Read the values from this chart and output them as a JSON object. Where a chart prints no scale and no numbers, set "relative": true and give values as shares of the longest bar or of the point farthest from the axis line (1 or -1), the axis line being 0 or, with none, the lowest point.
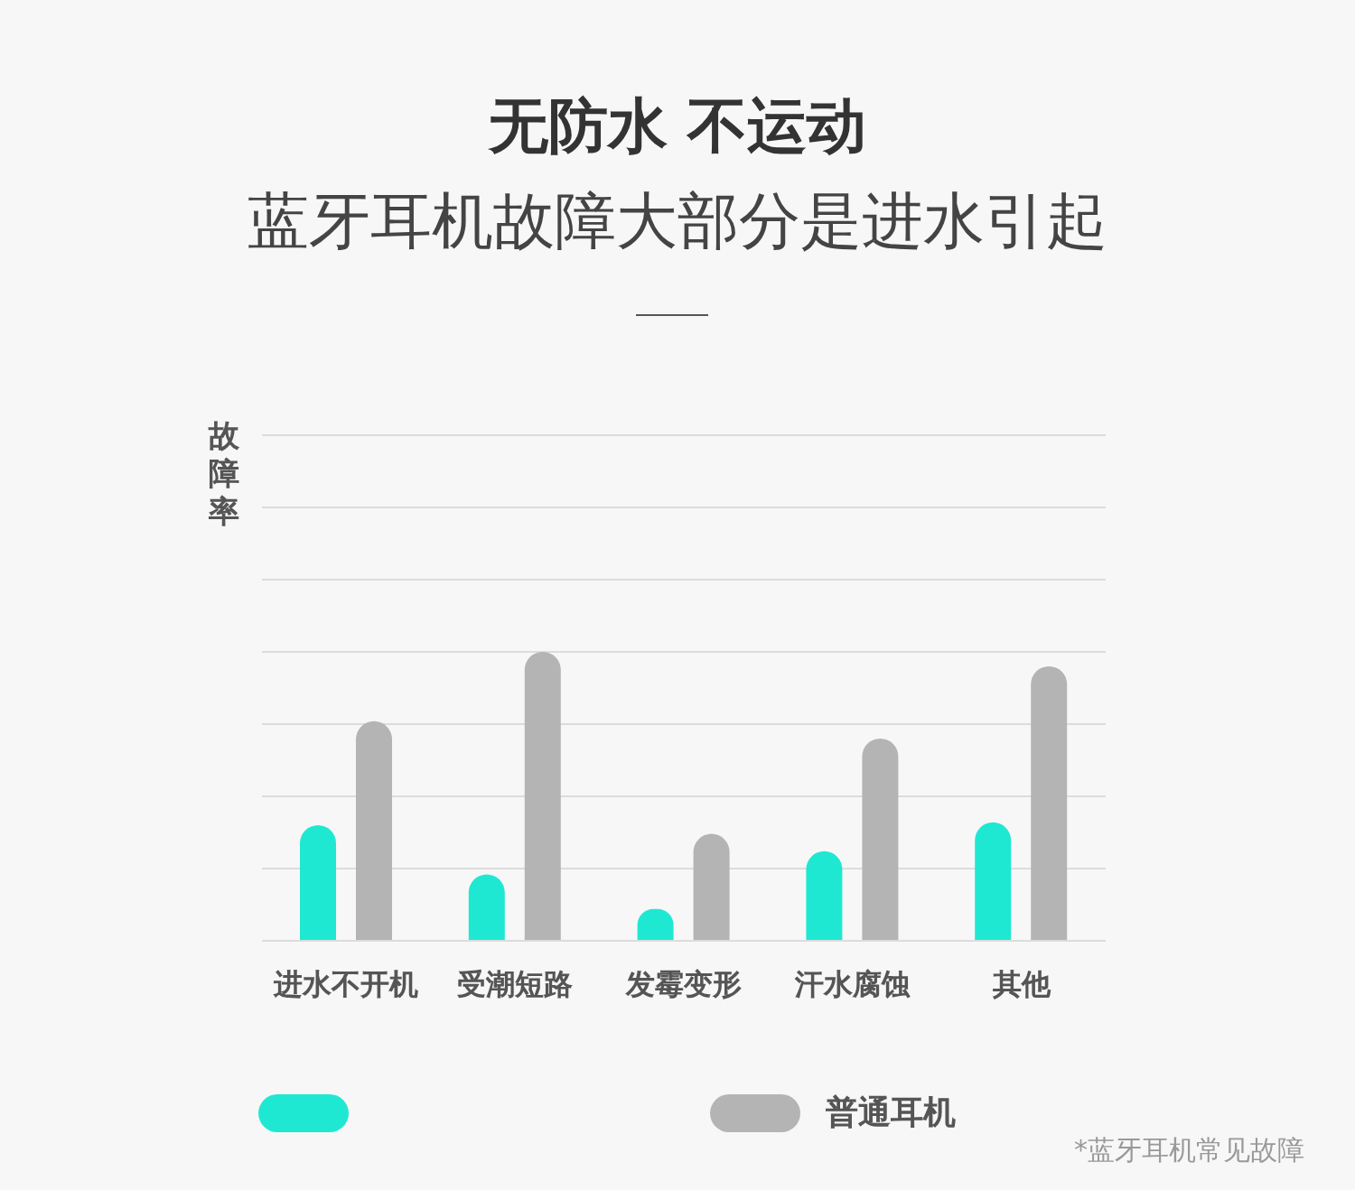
{
  "chart_data": {
    "type": "bar",
    "title": "无防水 不运动",
    "subtitle": "蓝牙耳机故障大部分是进水引起",
    "ylabel": "故障率",
    "relative": true,
    "grid": "y",
    "legend": "bottom",
    "categories": [
      "进水不开机",
      "受潮短路",
      "发霉变形",
      "汗水腐蚀",
      "其他"
    ],
    "series": [
      {
        "color": "#1fe8d2",
        "values": [
          0.4,
          0.23,
          0.11,
          0.31,
          0.41
        ]
      },
      {
        "name": "普通耳机",
        "color": "#b4b4b4",
        "values": [
          0.76,
          1,
          0.37,
          0.7,
          0.95
        ]
      }
    ],
    "annotations": [
      "*蓝牙耳机常见故障"
    ]
  }
}
